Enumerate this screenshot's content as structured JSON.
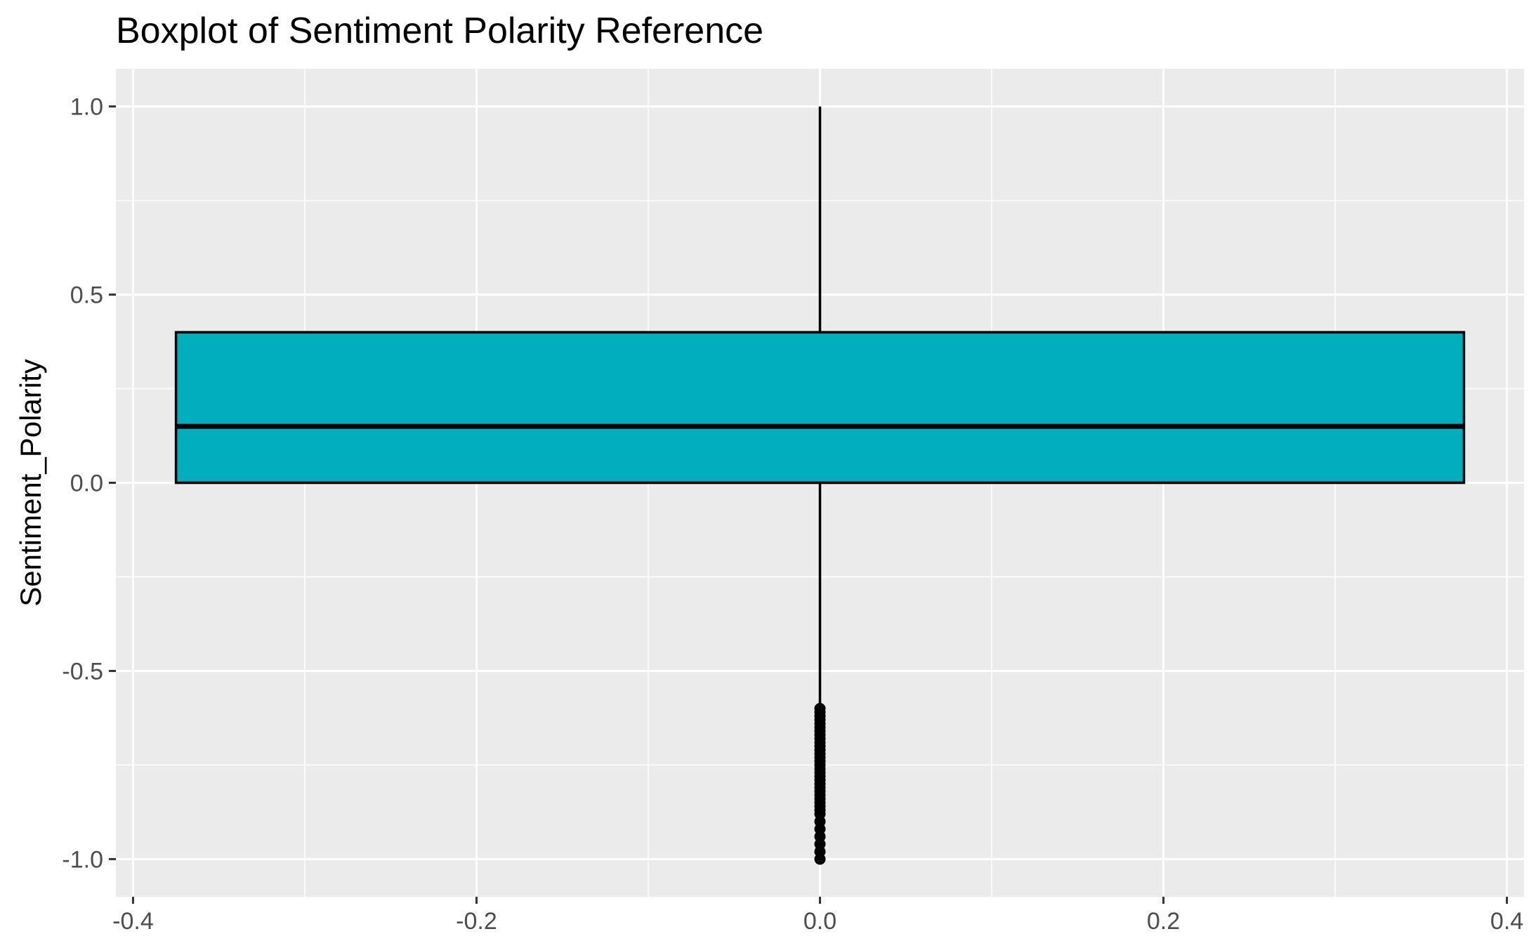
{
  "chart_data": {
    "type": "boxplot",
    "title": "Boxplot of Sentiment Polarity Reference",
    "xlabel": "",
    "ylabel": "Sentiment_Polarity",
    "xlim": [
      -0.41,
      0.41
    ],
    "ylim": [
      -1.1,
      1.1
    ],
    "x_ticks": [
      -0.4,
      -0.2,
      0.0,
      0.2,
      0.4
    ],
    "x_tick_labels": [
      "-0.4",
      "-0.2",
      "0.0",
      "0.2",
      "0.4"
    ],
    "y_ticks": [
      -1.0,
      -0.5,
      0.0,
      0.5,
      1.0
    ],
    "y_tick_labels": [
      "-1.0",
      "-0.5",
      "0.0",
      "0.5",
      "1.0"
    ],
    "grid": true,
    "box": {
      "x_center": 0.0,
      "x_left": -0.375,
      "x_right": 0.375,
      "q1": 0.0,
      "median": 0.15,
      "q3": 0.4,
      "whisker_low": -0.6,
      "whisker_high": 1.0
    },
    "outliers": [
      -0.6,
      -0.61,
      -0.62,
      -0.63,
      -0.64,
      -0.65,
      -0.66,
      -0.67,
      -0.68,
      -0.69,
      -0.7,
      -0.71,
      -0.72,
      -0.73,
      -0.74,
      -0.75,
      -0.76,
      -0.77,
      -0.78,
      -0.79,
      -0.8,
      -0.81,
      -0.82,
      -0.83,
      -0.84,
      -0.85,
      -0.86,
      -0.87,
      -0.88,
      -0.9,
      -0.92,
      -0.94,
      -0.96,
      -0.98,
      -1.0
    ],
    "colors": {
      "box_fill": "#00AEBD",
      "box_stroke": "#000000",
      "panel_bg": "#EBEBEB",
      "grid": "#FFFFFF",
      "tick_label": "#4D4D4D",
      "tick_mark": "#333333"
    }
  }
}
